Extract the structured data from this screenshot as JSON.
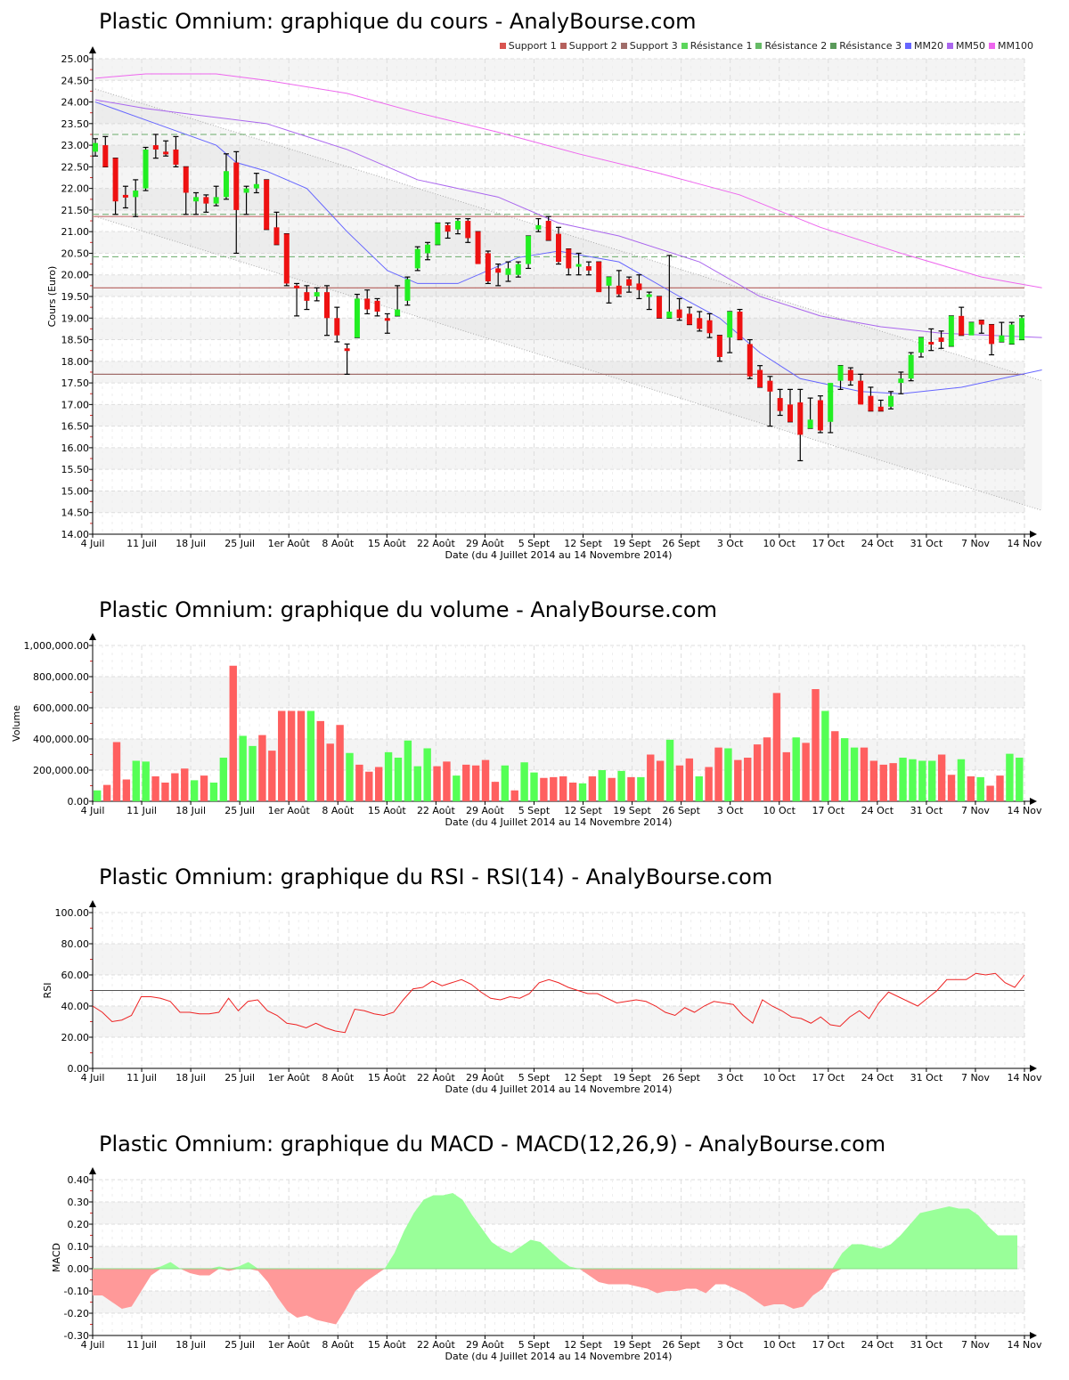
{
  "chart_data": [
    {
      "id": "price",
      "type": "candlestick",
      "title": "Plastic Omnium: graphique du cours - AnalyBourse.com",
      "xlabel": "Date (du 4 Juillet 2014 au 14 Novembre 2014)",
      "ylabel": "Cours (Euro)",
      "ylim": [
        14.0,
        25.0
      ],
      "yticks": [
        "14.00",
        "14.50",
        "15.00",
        "15.50",
        "16.00",
        "16.50",
        "17.00",
        "17.50",
        "18.00",
        "18.50",
        "19.00",
        "19.50",
        "20.00",
        "20.50",
        "21.00",
        "21.50",
        "22.00",
        "22.50",
        "23.00",
        "23.50",
        "24.00",
        "24.50",
        "25.00"
      ],
      "xticks": [
        "4 Juil",
        "11 Juil",
        "18 Juil",
        "25 Juil",
        "1er Août",
        "8 Août",
        "15 Août",
        "22 Août",
        "29 Août",
        "5 Sept",
        "12 Sept",
        "19 Sept",
        "26 Sept",
        "3 Oct",
        "10 Oct",
        "17 Oct",
        "24 Oct",
        "31 Oct",
        "7 Nov",
        "14 Nov"
      ],
      "legend": [
        {
          "label": "Support 1",
          "color": "#d9534f"
        },
        {
          "label": "Support 2",
          "color": "#b5605c"
        },
        {
          "label": "Support 3",
          "color": "#a06d6a"
        },
        {
          "label": "Résistance 1",
          "color": "#5cd65c"
        },
        {
          "label": "Résistance 2",
          "color": "#66bb66"
        },
        {
          "label": "Résistance 3",
          "color": "#5a9a5a"
        },
        {
          "label": "MM20",
          "color": "#6666ff"
        },
        {
          "label": "MM50",
          "color": "#aa66ee"
        },
        {
          "label": "MM100",
          "color": "#ee66ee"
        }
      ],
      "support_levels": [
        21.35,
        19.7,
        17.7
      ],
      "resistance_levels": [
        23.25,
        21.4,
        20.42
      ],
      "candles_ohlc": [
        [
          22.85,
          23.15,
          22.75,
          23.05
        ],
        [
          23.0,
          23.2,
          22.5,
          22.5
        ],
        [
          22.7,
          22.7,
          21.4,
          21.7
        ],
        [
          21.85,
          22.05,
          21.55,
          21.8
        ],
        [
          21.8,
          22.2,
          21.35,
          21.95
        ],
        [
          22.0,
          22.95,
          21.95,
          22.9
        ],
        [
          23.0,
          23.25,
          22.7,
          22.9
        ],
        [
          22.85,
          23.1,
          22.75,
          22.8
        ],
        [
          22.9,
          23.2,
          22.5,
          22.55
        ],
        [
          22.5,
          22.5,
          21.4,
          21.9
        ],
        [
          21.7,
          21.9,
          21.4,
          21.8
        ],
        [
          21.8,
          21.85,
          21.45,
          21.65
        ],
        [
          21.65,
          22.05,
          21.6,
          21.8
        ],
        [
          21.8,
          22.8,
          21.75,
          22.4
        ],
        [
          22.6,
          22.85,
          20.5,
          21.5
        ],
        [
          21.9,
          22.05,
          21.4,
          22.0
        ],
        [
          22.0,
          22.35,
          21.9,
          22.1
        ],
        [
          22.2,
          22.2,
          21.05,
          21.05
        ],
        [
          21.1,
          21.45,
          20.7,
          20.7
        ],
        [
          20.95,
          20.95,
          19.75,
          19.8
        ],
        [
          19.75,
          19.8,
          19.05,
          19.7
        ],
        [
          19.6,
          19.75,
          19.2,
          19.4
        ],
        [
          19.5,
          19.7,
          19.4,
          19.6
        ],
        [
          19.6,
          19.75,
          18.6,
          19.0
        ],
        [
          19.0,
          19.25,
          18.45,
          18.6
        ],
        [
          18.3,
          18.4,
          17.7,
          18.25
        ],
        [
          18.55,
          19.55,
          18.55,
          19.45
        ],
        [
          19.45,
          19.65,
          19.1,
          19.2
        ],
        [
          19.4,
          19.45,
          19.05,
          19.15
        ],
        [
          19.0,
          19.1,
          18.65,
          18.95
        ],
        [
          19.05,
          19.75,
          19.05,
          19.2
        ],
        [
          19.4,
          19.95,
          19.3,
          19.9
        ],
        [
          20.15,
          20.65,
          20.1,
          20.6
        ],
        [
          20.5,
          20.75,
          20.35,
          20.7
        ],
        [
          20.7,
          21.2,
          20.7,
          21.2
        ],
        [
          21.15,
          21.2,
          20.85,
          21.0
        ],
        [
          21.05,
          21.3,
          20.95,
          21.25
        ],
        [
          21.25,
          21.3,
          20.75,
          20.85
        ],
        [
          21.0,
          21.0,
          20.3,
          20.25
        ],
        [
          20.5,
          20.55,
          19.8,
          19.85
        ],
        [
          20.15,
          20.25,
          19.75,
          20.05
        ],
        [
          20.0,
          20.3,
          19.85,
          20.15
        ],
        [
          20.0,
          20.3,
          19.95,
          20.25
        ],
        [
          20.25,
          20.9,
          20.15,
          20.9
        ],
        [
          21.05,
          21.3,
          21.0,
          21.15
        ],
        [
          21.25,
          21.35,
          20.8,
          20.8
        ],
        [
          20.95,
          21.1,
          20.25,
          20.3
        ],
        [
          20.6,
          20.6,
          20.0,
          20.15
        ],
        [
          20.25,
          20.5,
          20.0,
          20.25
        ],
        [
          20.2,
          20.3,
          20.0,
          20.1
        ],
        [
          20.3,
          20.3,
          19.65,
          19.6
        ],
        [
          19.75,
          19.95,
          19.35,
          19.95
        ],
        [
          19.75,
          20.1,
          19.5,
          19.55
        ],
        [
          19.9,
          19.95,
          19.6,
          19.75
        ],
        [
          19.8,
          20.0,
          19.45,
          19.65
        ],
        [
          19.5,
          19.6,
          19.2,
          19.55
        ],
        [
          19.5,
          19.5,
          19.0,
          19.0
        ],
        [
          19.0,
          20.45,
          19.0,
          19.15
        ],
        [
          19.2,
          19.45,
          18.95,
          19.0
        ],
        [
          19.1,
          19.25,
          18.85,
          18.85
        ],
        [
          19.0,
          19.15,
          18.7,
          18.75
        ],
        [
          18.95,
          19.1,
          18.55,
          18.65
        ],
        [
          18.6,
          18.6,
          18.0,
          18.1
        ],
        [
          18.55,
          19.15,
          18.2,
          19.15
        ],
        [
          19.15,
          19.2,
          18.5,
          18.5
        ],
        [
          18.4,
          18.5,
          17.6,
          17.65
        ],
        [
          17.8,
          17.9,
          17.4,
          17.4
        ],
        [
          17.55,
          17.65,
          16.5,
          17.3
        ],
        [
          17.15,
          17.35,
          16.75,
          16.85
        ],
        [
          17.0,
          17.35,
          16.6,
          16.6
        ],
        [
          17.05,
          17.35,
          15.7,
          16.3
        ],
        [
          16.45,
          17.15,
          16.45,
          16.65
        ],
        [
          17.1,
          17.2,
          16.35,
          16.4
        ],
        [
          16.6,
          17.3,
          16.35,
          17.5
        ],
        [
          17.55,
          17.9,
          17.35,
          17.9
        ],
        [
          17.8,
          17.85,
          17.45,
          17.55
        ],
        [
          17.55,
          17.7,
          17.05,
          17.0
        ],
        [
          17.2,
          17.4,
          16.85,
          16.85
        ],
        [
          16.95,
          17.1,
          16.85,
          16.85
        ],
        [
          16.95,
          17.3,
          16.9,
          17.2
        ],
        [
          17.5,
          17.75,
          17.25,
          17.6
        ],
        [
          17.6,
          18.2,
          17.55,
          18.15
        ],
        [
          18.2,
          18.55,
          18.1,
          18.55
        ],
        [
          18.45,
          18.75,
          18.25,
          18.4
        ],
        [
          18.55,
          18.7,
          18.3,
          18.45
        ],
        [
          18.35,
          19.05,
          18.35,
          19.05
        ],
        [
          19.05,
          19.25,
          18.6,
          18.6
        ],
        [
          18.6,
          18.9,
          18.75,
          18.9
        ],
        [
          18.95,
          18.95,
          18.65,
          18.85
        ],
        [
          18.85,
          18.85,
          18.15,
          18.4
        ],
        [
          18.45,
          18.9,
          18.45,
          18.6
        ],
        [
          18.4,
          18.9,
          18.4,
          18.85
        ],
        [
          18.5,
          19.05,
          18.5,
          19.0
        ]
      ],
      "mm20": [
        [
          0,
          24.0
        ],
        [
          6,
          23.5
        ],
        [
          12,
          23.0
        ],
        [
          14,
          22.6
        ],
        [
          17,
          22.4
        ],
        [
          21,
          22.0
        ],
        [
          25,
          21.0
        ],
        [
          29,
          20.1
        ],
        [
          32,
          19.8
        ],
        [
          36,
          19.8
        ],
        [
          42,
          20.4
        ],
        [
          46,
          20.55
        ],
        [
          52,
          20.3
        ],
        [
          58,
          19.5
        ],
        [
          62,
          19.0
        ],
        [
          66,
          18.2
        ],
        [
          70,
          17.6
        ],
        [
          76,
          17.3
        ],
        [
          80,
          17.25
        ],
        [
          86,
          17.4
        ],
        [
          94,
          17.8
        ]
      ],
      "mm50": [
        [
          0,
          24.05
        ],
        [
          5,
          23.85
        ],
        [
          10,
          23.7
        ],
        [
          17,
          23.5
        ],
        [
          21,
          23.2
        ],
        [
          25,
          22.9
        ],
        [
          32,
          22.2
        ],
        [
          40,
          21.8
        ],
        [
          46,
          21.2
        ],
        [
          52,
          20.9
        ],
        [
          60,
          20.3
        ],
        [
          66,
          19.5
        ],
        [
          72,
          19.05
        ],
        [
          78,
          18.8
        ],
        [
          84,
          18.65
        ],
        [
          94,
          18.55
        ]
      ],
      "mm100": [
        [
          0,
          24.55
        ],
        [
          5,
          24.65
        ],
        [
          12,
          24.65
        ],
        [
          17,
          24.5
        ],
        [
          25,
          24.2
        ],
        [
          32,
          23.75
        ],
        [
          40,
          23.3
        ],
        [
          48,
          22.8
        ],
        [
          56,
          22.35
        ],
        [
          64,
          21.85
        ],
        [
          72,
          21.1
        ],
        [
          80,
          20.5
        ],
        [
          88,
          19.95
        ],
        [
          94,
          19.7
        ]
      ],
      "channel_upper": [
        [
          0,
          24.3
        ],
        [
          94,
          17.55
        ]
      ],
      "channel_lower": [
        [
          0,
          21.35
        ],
        [
          94,
          14.55
        ]
      ]
    },
    {
      "id": "volume",
      "type": "bar",
      "title": "Plastic Omnium: graphique du volume - AnalyBourse.com",
      "xlabel": "Date (du 4 Juillet 2014 au 14 Novembre 2014)",
      "ylabel": "Volume",
      "ylim": [
        0,
        1000000
      ],
      "yticks": [
        "0.00",
        "200,000.00",
        "400,000.00",
        "600,000.00",
        "800,000.00",
        "1,000,000.00"
      ],
      "values": [
        70000,
        105000,
        380000,
        140000,
        260000,
        255000,
        160000,
        120000,
        180000,
        210000,
        135000,
        165000,
        120000,
        280000,
        870000,
        420000,
        355000,
        425000,
        325000,
        580000,
        580000,
        580000,
        580000,
        515000,
        370000,
        490000,
        310000,
        235000,
        190000,
        220000,
        315000,
        280000,
        390000,
        225000,
        340000,
        225000,
        255000,
        165000,
        235000,
        230000,
        265000,
        125000,
        230000,
        70000,
        250000,
        185000,
        150000,
        155000,
        160000,
        120000,
        115000,
        160000,
        200000,
        150000,
        195000,
        155000,
        155000,
        300000,
        260000,
        395000,
        230000,
        275000,
        160000,
        220000,
        345000,
        340000,
        265000,
        280000,
        365000,
        410000,
        695000,
        315000,
        410000,
        375000,
        720000,
        580000,
        450000,
        405000,
        345000,
        345000,
        260000,
        235000,
        245000,
        280000,
        270000,
        260000,
        260000,
        300000,
        170000,
        270000,
        160000,
        155000,
        100000,
        165000,
        305000,
        280000
      ],
      "colors": [
        "g",
        "r",
        "r",
        "r",
        "g",
        "g",
        "r",
        "r",
        "r",
        "r",
        "g",
        "r",
        "g",
        "g",
        "r",
        "g",
        "g",
        "r",
        "r",
        "r",
        "r",
        "r",
        "g",
        "r",
        "r",
        "r",
        "g",
        "r",
        "r",
        "r",
        "g",
        "g",
        "g",
        "g",
        "g",
        "r",
        "r",
        "g",
        "r",
        "r",
        "r",
        "r",
        "g",
        "r",
        "g",
        "g",
        "r",
        "r",
        "r",
        "r",
        "g",
        "r",
        "g",
        "r",
        "g",
        "r",
        "g",
        "r",
        "r",
        "g",
        "r",
        "r",
        "g",
        "r",
        "r",
        "g",
        "r",
        "r",
        "r",
        "r",
        "r",
        "r",
        "g",
        "r",
        "r",
        "g",
        "r",
        "g",
        "g",
        "r",
        "r",
        "r",
        "r",
        "g",
        "g",
        "g",
        "g",
        "r",
        "r",
        "g",
        "r",
        "g",
        "r",
        "r",
        "g",
        "g"
      ]
    },
    {
      "id": "rsi",
      "type": "line",
      "title": "Plastic Omnium: graphique du RSI - RSI(14) - AnalyBourse.com",
      "xlabel": "Date (du 4 Juillet 2014 au 14 Novembre 2014)",
      "ylabel": "RSI",
      "ylim": [
        0,
        100
      ],
      "yticks": [
        "0.00",
        "20.00",
        "40.00",
        "60.00",
        "80.00",
        "100.00"
      ],
      "reference_line": 50,
      "values": [
        40,
        36,
        30,
        31,
        34,
        46,
        46,
        45,
        43,
        36,
        36,
        35,
        35,
        36,
        45,
        37,
        43,
        44,
        37,
        34,
        29,
        28,
        26,
        29,
        26,
        24,
        23,
        38,
        37,
        35,
        34,
        36,
        44,
        51,
        52,
        56,
        53,
        55,
        57,
        54,
        49,
        45,
        44,
        46,
        45,
        48,
        55,
        57,
        55,
        52,
        50,
        48,
        48,
        45,
        42,
        43,
        44,
        43,
        40,
        36,
        34,
        39,
        36,
        40,
        43,
        42,
        41,
        34,
        29,
        44,
        40,
        37,
        33,
        32,
        29,
        33,
        28,
        27,
        33,
        37,
        32,
        42,
        49,
        46,
        43,
        40,
        45,
        50,
        57,
        57,
        57,
        61,
        60,
        61,
        55,
        52,
        60
      ]
    },
    {
      "id": "macd",
      "type": "area",
      "title": "Plastic Omnium: graphique du MACD - MACD(12,26,9) - AnalyBourse.com",
      "xlabel": "Date (du 4 Juillet 2014 au 14 Novembre 2014)",
      "ylabel": "MACD",
      "ylim": [
        -0.3,
        0.4
      ],
      "yticks": [
        "-0.30",
        "-0.20",
        "-0.10",
        "0.00",
        "0.10",
        "0.20",
        "0.30",
        "0.40"
      ],
      "values": [
        -0.12,
        -0.12,
        -0.15,
        -0.18,
        -0.17,
        -0.1,
        -0.03,
        0.01,
        0.03,
        0.0,
        -0.02,
        -0.03,
        -0.03,
        0.01,
        -0.01,
        0.01,
        0.03,
        -0.01,
        -0.06,
        -0.13,
        -0.19,
        -0.22,
        -0.21,
        -0.23,
        -0.24,
        -0.25,
        -0.18,
        -0.1,
        -0.06,
        -0.03,
        0.0,
        0.07,
        0.17,
        0.25,
        0.31,
        0.33,
        0.33,
        0.34,
        0.31,
        0.24,
        0.18,
        0.12,
        0.09,
        0.07,
        0.1,
        0.13,
        0.12,
        0.08,
        0.04,
        0.01,
        0.0,
        -0.03,
        -0.06,
        -0.07,
        -0.07,
        -0.07,
        -0.08,
        -0.09,
        -0.11,
        -0.1,
        -0.1,
        -0.09,
        -0.09,
        -0.11,
        -0.07,
        -0.07,
        -0.09,
        -0.11,
        -0.14,
        -0.17,
        -0.16,
        -0.16,
        -0.18,
        -0.17,
        -0.12,
        -0.09,
        -0.02,
        0.07,
        0.11,
        0.11,
        0.1,
        0.09,
        0.11,
        0.15,
        0.2,
        0.25,
        0.26,
        0.27,
        0.28,
        0.27,
        0.27,
        0.24,
        0.19,
        0.15,
        0.15,
        0.15
      ]
    }
  ]
}
